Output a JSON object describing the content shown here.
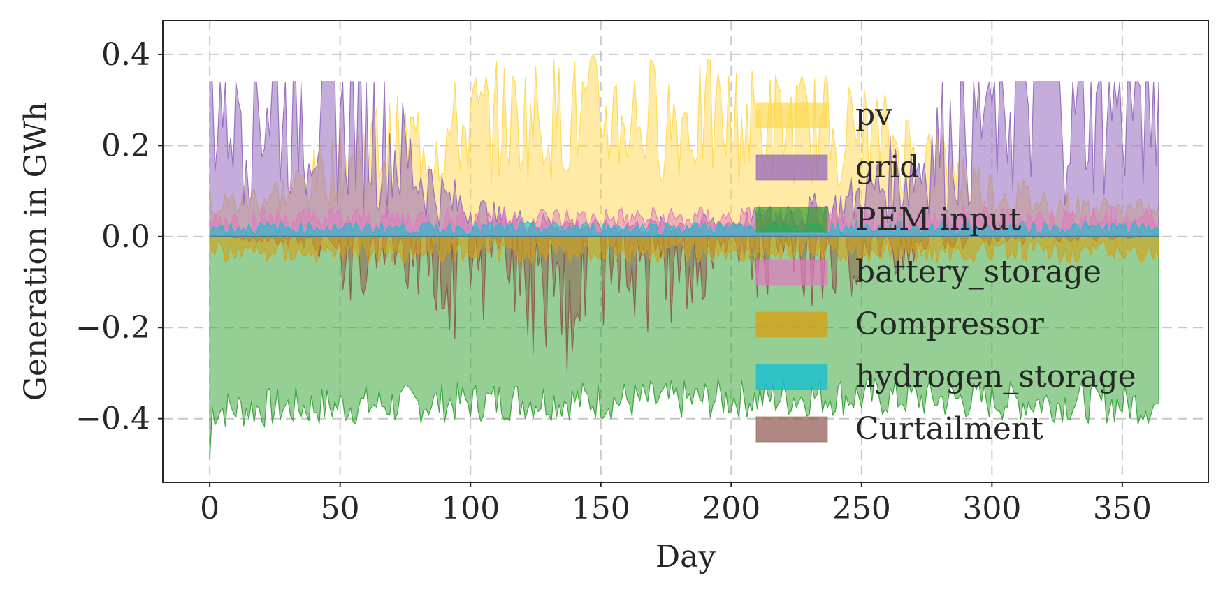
{
  "chart_data": {
    "type": "area",
    "xlabel": "Day",
    "ylabel": "Generation in GWh",
    "xlim": [
      -18,
      383
    ],
    "ylim": [
      -0.54,
      0.475
    ],
    "x_ticks": [
      0,
      50,
      100,
      150,
      200,
      250,
      300,
      350
    ],
    "y_ticks": [
      0.4,
      0.2,
      0.0,
      -0.2,
      -0.4
    ],
    "x_tick_labels": [
      "0",
      "50",
      "100",
      "150",
      "200",
      "250",
      "300",
      "350"
    ],
    "y_tick_labels": [
      "0.4",
      "0.2",
      "0.0",
      "−0.2",
      "−0.4"
    ],
    "grid": true,
    "legend_position": "center-right",
    "days": 365,
    "series": [
      {
        "name": "pv",
        "color": "#ffd84d",
        "opacity": 0.5,
        "profile_days": [
          0,
          30,
          60,
          90,
          100,
          120,
          150,
          180,
          210,
          240,
          260,
          280,
          300,
          330,
          364
        ],
        "profile_values": [
          0.1,
          0.15,
          0.3,
          0.33,
          0.38,
          0.4,
          0.41,
          0.4,
          0.38,
          0.36,
          0.32,
          0.25,
          0.15,
          0.1,
          0.08
        ]
      },
      {
        "name": "grid",
        "color": "#9467bd",
        "opacity": 0.55,
        "profile_days": [
          0,
          30,
          55,
          80,
          90,
          110,
          150,
          200,
          240,
          270,
          290,
          310,
          364
        ],
        "profile_values": [
          0.34,
          0.32,
          0.28,
          0.14,
          0.08,
          0.04,
          0.02,
          0.03,
          0.06,
          0.15,
          0.25,
          0.33,
          0.34
        ]
      },
      {
        "name": "PEM input",
        "color": "#2ca02c",
        "opacity": 0.5,
        "profile_days": [
          0,
          60,
          120,
          180,
          240,
          300,
          364
        ],
        "profile_values": [
          -0.38,
          -0.37,
          -0.36,
          -0.36,
          -0.35,
          -0.36,
          -0.37
        ]
      },
      {
        "name": "battery_storage",
        "color": "#e377c2",
        "opacity": 0.5,
        "profile_days": [
          0,
          364
        ],
        "profile_values": [
          0.04,
          0.04
        ]
      },
      {
        "name": "Compressor",
        "color": "#d4a017",
        "opacity": 0.6,
        "profile_days": [
          0,
          364
        ],
        "profile_values": [
          -0.035,
          -0.035
        ]
      },
      {
        "name": "hydrogen_storage",
        "color": "#17becf",
        "opacity": 0.6,
        "profile_days": [
          0,
          364
        ],
        "profile_values": [
          0.02,
          0.02
        ]
      },
      {
        "name": "Curtailment",
        "color": "#8c564b",
        "opacity": 0.5,
        "profile_days": [
          0,
          40,
          55,
          70,
          90,
          110,
          140,
          160,
          180,
          200,
          220,
          240,
          260,
          280,
          364
        ],
        "profile_values": [
          0.0,
          -0.02,
          -0.1,
          -0.05,
          -0.15,
          -0.14,
          -0.2,
          -0.15,
          -0.12,
          -0.05,
          -0.12,
          -0.1,
          -0.06,
          -0.02,
          0.0
        ]
      }
    ]
  }
}
